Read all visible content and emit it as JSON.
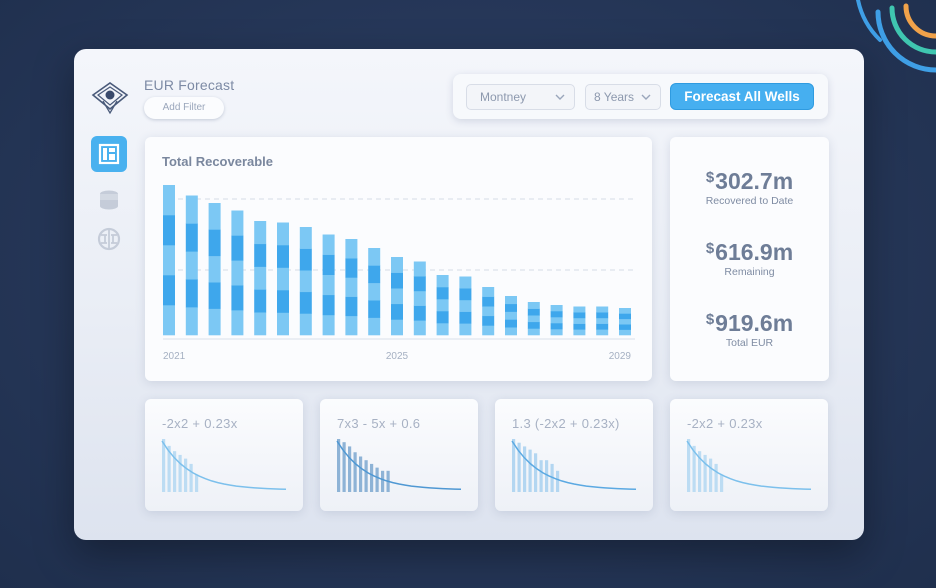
{
  "app": {
    "title": "EUR Forecast"
  },
  "header": {
    "add_filter_label": "Add Filter"
  },
  "toolbar": {
    "region": {
      "value": "Montney"
    },
    "period": {
      "value": "8 Years"
    },
    "forecast_button_label": "Forecast All Wells"
  },
  "nav": {
    "items": [
      {
        "icon": "dashboard-icon",
        "active": true
      },
      {
        "icon": "database-icon",
        "active": false
      },
      {
        "icon": "brain-icon",
        "active": false
      }
    ]
  },
  "colors": {
    "accent": "#46aff0",
    "bar_dark": "#3ea7ec",
    "bar_light": "#7cc8f4",
    "background": "#253657",
    "mini_dark": "#7aaedb"
  },
  "main_chart": {
    "title": "Total Recoverable",
    "x_ticks": [
      "2021",
      "2025",
      "2029"
    ]
  },
  "chart_data": {
    "type": "bar",
    "title": "Total Recoverable",
    "stacked": true,
    "x_ticks": [
      "2021",
      "2025",
      "2029"
    ],
    "bar_count": 21,
    "totals": [
      100,
      93,
      88,
      83,
      76,
      75,
      72,
      67,
      64,
      58,
      52,
      49,
      40,
      39,
      32,
      26,
      22,
      20,
      19,
      19,
      18
    ],
    "stack_segments": 5,
    "ylim": [
      0,
      100
    ],
    "grid": "dashed horizontal lines"
  },
  "stats": [
    {
      "currency": "$",
      "value": "302.7m",
      "label": "Recovered to Date"
    },
    {
      "currency": "$",
      "value": "616.9m",
      "label": "Remaining"
    },
    {
      "currency": "$",
      "value": "919.6m",
      "label": "Total EUR"
    }
  ],
  "mini_charts": [
    {
      "formula": "-2x2 + 0.23x",
      "bars": [
        100,
        87,
        77,
        70,
        63,
        53,
        33
      ],
      "bar_color": "#bcdcf3",
      "curve_color": "#7cc0ec"
    },
    {
      "formula": "7x3 - 5x + 0.6",
      "bars": [
        100,
        94,
        86,
        75,
        67,
        60,
        53,
        46,
        40,
        40
      ],
      "bar_color": "#8eb3d6",
      "curve_color": "#4f98d3"
    },
    {
      "formula": "1.3 (-2x2 + 0.23x)",
      "bars": [
        100,
        93,
        86,
        80,
        73,
        60,
        60,
        53,
        40
      ],
      "bar_color": "#b3d6f1",
      "curve_color": "#5ba9e2"
    },
    {
      "formula": "-2x2 + 0.23x",
      "bars": [
        100,
        87,
        77,
        70,
        63,
        53,
        33
      ],
      "bar_color": "#bcdcf3",
      "curve_color": "#7cc0ec"
    }
  ]
}
